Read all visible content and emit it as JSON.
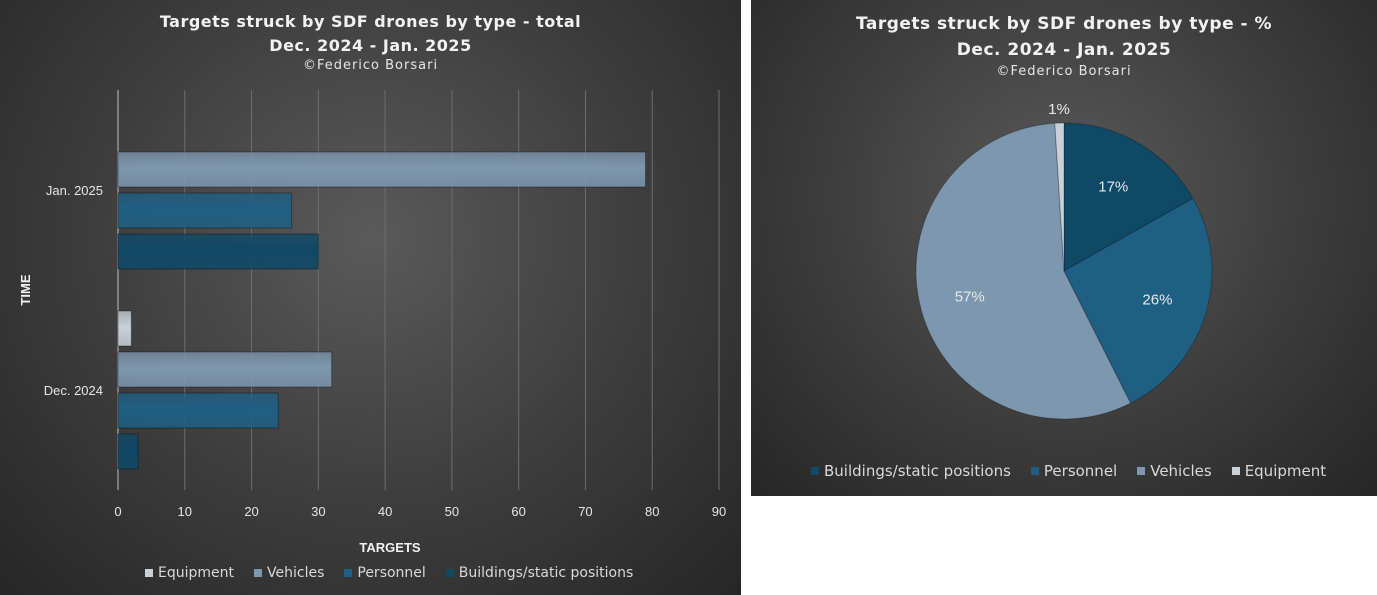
{
  "bar_panel": {
    "title_line1": "Targets struck by SDF drones by type - total",
    "title_line2": "Dec. 2024 - Jan. 2025",
    "credit": "©Federico Borsari"
  },
  "pie_panel": {
    "title_line1": "Targets struck by SDF drones by type - %",
    "title_line2": "Dec. 2024 - Jan. 2025",
    "credit": "©Federico Borsari"
  },
  "colors": {
    "equipment": "#c8d0d8",
    "vehicles": "#7d97ae",
    "personnel": "#1f5f84",
    "buildings": "#0f4966",
    "grid": "#6e6e6e",
    "axis_text": "#e6e6e6"
  },
  "chart_data": [
    {
      "type": "bar",
      "orientation": "horizontal",
      "xlabel": "TARGETS",
      "ylabel": "TIME",
      "xlim": [
        0,
        90
      ],
      "xticks": [
        "0",
        "10",
        "20",
        "30",
        "40",
        "50",
        "60",
        "70",
        "80",
        "90"
      ],
      "grid": true,
      "legend_position": "bottom",
      "categories": [
        "Dec. 2024",
        "Jan. 2025"
      ],
      "series": [
        {
          "name": "Equipment",
          "values": [
            2,
            0
          ]
        },
        {
          "name": "Vehicles",
          "values": [
            32,
            79
          ]
        },
        {
          "name": "Personnel",
          "values": [
            24,
            26
          ]
        },
        {
          "name": "Buildings/static positions",
          "values": [
            3,
            30
          ]
        }
      ]
    },
    {
      "type": "pie",
      "legend_position": "bottom",
      "slices": [
        {
          "name": "Buildings/static positions",
          "value": 17,
          "label": "17%"
        },
        {
          "name": "Personnel",
          "value": 26,
          "label": "26%"
        },
        {
          "name": "Vehicles",
          "value": 57,
          "label": "57%"
        },
        {
          "name": "Equipment",
          "value": 1,
          "label": "1%"
        }
      ]
    }
  ]
}
